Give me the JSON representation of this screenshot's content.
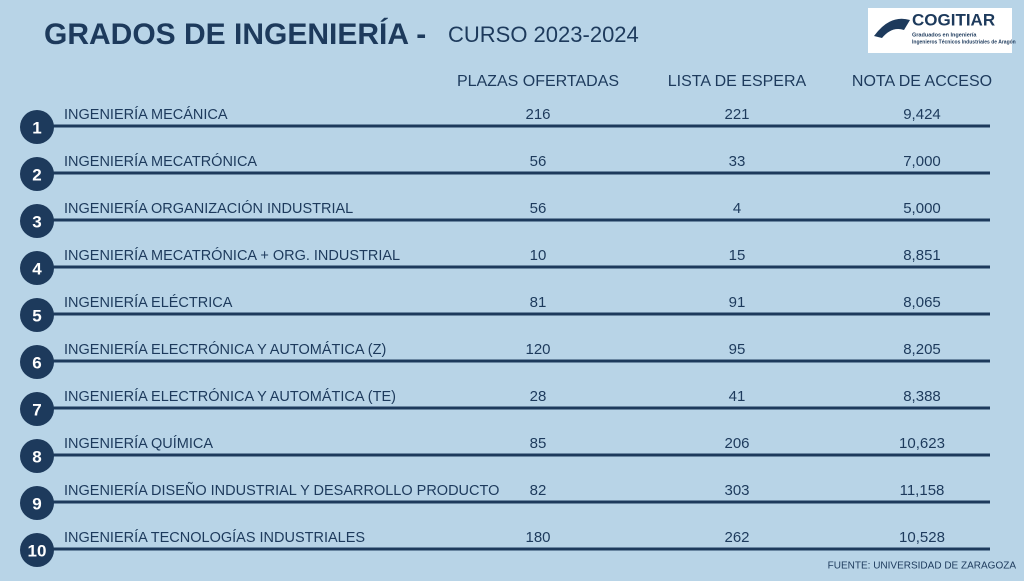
{
  "header": {
    "title": "GRADOS DE INGENIERÍA -",
    "subtitle": "CURSO 2023-2024"
  },
  "logo": {
    "name": "COGITIAR",
    "line1": "Graduados en Ingeniería",
    "line2": "Ingenieros Técnicos Industriales de Aragón"
  },
  "table": {
    "columns": [
      "PLAZAS OFERTADAS",
      "LISTA DE ESPERA",
      "NOTA DE ACCESO"
    ],
    "rows": [
      {
        "number": "1",
        "name": "INGENIERÍA MECÁNICA",
        "cells": [
          "216",
          "221",
          "9,424"
        ]
      },
      {
        "number": "2",
        "name": "INGENIERÍA MECATRÓNICA",
        "cells": [
          "56",
          "33",
          "7,000"
        ]
      },
      {
        "number": "3",
        "name": "INGENIERÍA ORGANIZACIÓN INDUSTRIAL",
        "cells": [
          "56",
          "4",
          "5,000"
        ]
      },
      {
        "number": "4",
        "name": "INGENIERÍA MECATRÓNICA + ORG. INDUSTRIAL",
        "cells": [
          "10",
          "15",
          "8,851"
        ]
      },
      {
        "number": "5",
        "name": "INGENIERÍA ELÉCTRICA",
        "cells": [
          "81",
          "91",
          "8,065"
        ]
      },
      {
        "number": "6",
        "name": "INGENIERÍA ELECTRÓNICA Y AUTOMÁTICA (Z)",
        "cells": [
          "120",
          "95",
          "8,205"
        ]
      },
      {
        "number": "7",
        "name": "INGENIERÍA ELECTRÓNICA Y AUTOMÁTICA (TE)",
        "cells": [
          "28",
          "41",
          "8,388"
        ]
      },
      {
        "number": "8",
        "name": "INGENIERÍA QUÍMICA",
        "cells": [
          "85",
          "206",
          "10,623"
        ]
      },
      {
        "number": "9",
        "name": "INGENIERÍA DISEÑO INDUSTRIAL Y DESARROLLO PRODUCTO",
        "cells": [
          "82",
          "303",
          "11,158"
        ]
      },
      {
        "number": "10",
        "name": "INGENIERÍA TECNOLOGÍAS INDUSTRIALES",
        "cells": [
          "180",
          "262",
          "10,528"
        ]
      }
    ]
  },
  "source": "FUENTE: UNIVERSIDAD DE ZARAGOZA"
}
